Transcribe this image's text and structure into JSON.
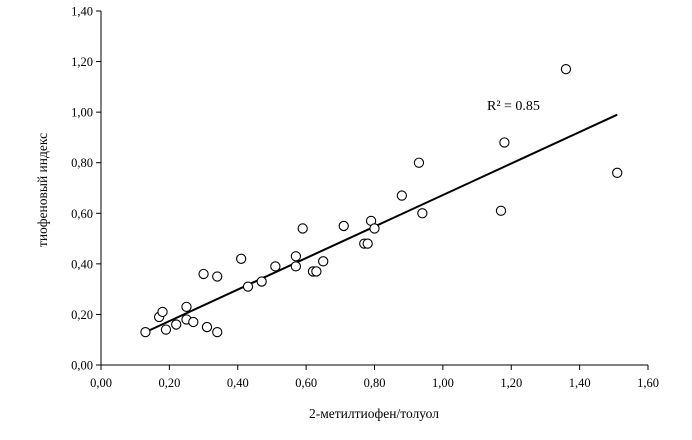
{
  "chart_data": {
    "type": "scatter",
    "xlabel": "2-метилтиофен/толуол",
    "ylabel": "тиофеновый индекс",
    "xlim": [
      0,
      1.6
    ],
    "ylim": [
      0,
      1.4
    ],
    "x_ticks": [
      "0,00",
      "0,20",
      "0,40",
      "0,60",
      "0,80",
      "1,00",
      "1,20",
      "1,40",
      "1,60"
    ],
    "y_ticks": [
      "0,00",
      "0,20",
      "0,40",
      "0,60",
      "0,80",
      "1,00",
      "1,20",
      "1,40"
    ],
    "grid": false,
    "legend": "none",
    "annotation": "R² = 0.85",
    "trendline": {
      "x": [
        0.13,
        1.51
      ],
      "y": [
        0.13,
        0.99
      ]
    },
    "points": [
      {
        "x": 0.13,
        "y": 0.13
      },
      {
        "x": 0.17,
        "y": 0.19
      },
      {
        "x": 0.18,
        "y": 0.21
      },
      {
        "x": 0.19,
        "y": 0.14
      },
      {
        "x": 0.22,
        "y": 0.16
      },
      {
        "x": 0.25,
        "y": 0.23
      },
      {
        "x": 0.25,
        "y": 0.18
      },
      {
        "x": 0.27,
        "y": 0.17
      },
      {
        "x": 0.3,
        "y": 0.36
      },
      {
        "x": 0.31,
        "y": 0.15
      },
      {
        "x": 0.34,
        "y": 0.35
      },
      {
        "x": 0.34,
        "y": 0.13
      },
      {
        "x": 0.41,
        "y": 0.42
      },
      {
        "x": 0.43,
        "y": 0.31
      },
      {
        "x": 0.47,
        "y": 0.33
      },
      {
        "x": 0.51,
        "y": 0.39
      },
      {
        "x": 0.57,
        "y": 0.43
      },
      {
        "x": 0.57,
        "y": 0.39
      },
      {
        "x": 0.59,
        "y": 0.54
      },
      {
        "x": 0.62,
        "y": 0.37
      },
      {
        "x": 0.63,
        "y": 0.37
      },
      {
        "x": 0.65,
        "y": 0.41
      },
      {
        "x": 0.71,
        "y": 0.55
      },
      {
        "x": 0.77,
        "y": 0.48
      },
      {
        "x": 0.78,
        "y": 0.48
      },
      {
        "x": 0.79,
        "y": 0.57
      },
      {
        "x": 0.8,
        "y": 0.54
      },
      {
        "x": 0.88,
        "y": 0.67
      },
      {
        "x": 0.93,
        "y": 0.8
      },
      {
        "x": 0.94,
        "y": 0.6
      },
      {
        "x": 1.17,
        "y": 0.61
      },
      {
        "x": 1.18,
        "y": 0.88
      },
      {
        "x": 1.36,
        "y": 1.17
      },
      {
        "x": 1.51,
        "y": 0.76
      }
    ]
  }
}
